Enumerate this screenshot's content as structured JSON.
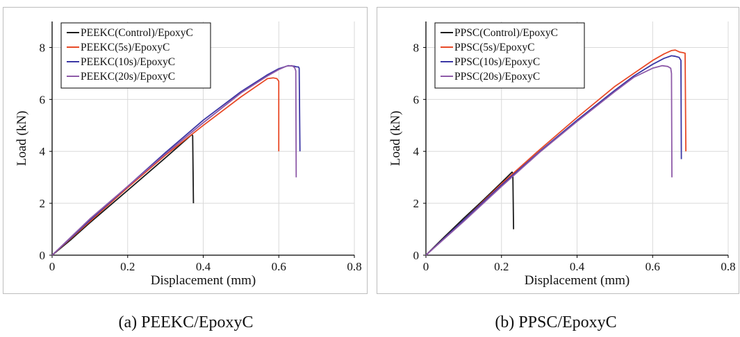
{
  "chart_data": [
    {
      "type": "line",
      "xlabel": "Displacement (mm)",
      "ylabel": "Load (kN)",
      "xlim": [
        0,
        0.8
      ],
      "ylim": [
        0,
        9
      ],
      "xticks": [
        "0",
        "0.2",
        "0.4",
        "0.6",
        "0.8"
      ],
      "yticks": [
        "0",
        "2",
        "4",
        "6",
        "8"
      ],
      "grid": true,
      "legend": "top-left",
      "caption": "(a) PEEKC/EpoxyC",
      "series": [
        {
          "name": "PEEKC(Control)/EpoxyC",
          "color": "#1a1a1a",
          "x": [
            0,
            0.05,
            0.1,
            0.2,
            0.3,
            0.37,
            0.372,
            0.374
          ],
          "y": [
            0,
            0.6,
            1.25,
            2.5,
            3.75,
            4.65,
            4.6,
            2.0
          ]
        },
        {
          "name": "PEEKC(5s)/EpoxyC",
          "color": "#e84a27",
          "x": [
            0,
            0.05,
            0.1,
            0.2,
            0.3,
            0.4,
            0.5,
            0.55,
            0.57,
            0.585,
            0.595,
            0.6,
            0.6
          ],
          "y": [
            0,
            0.65,
            1.3,
            2.6,
            3.85,
            5.0,
            6.1,
            6.6,
            6.8,
            6.83,
            6.8,
            6.7,
            4.0
          ]
        },
        {
          "name": "PEEKC(10s)/EpoxyC",
          "color": "#3b37a5",
          "x": [
            0,
            0.05,
            0.1,
            0.2,
            0.3,
            0.4,
            0.5,
            0.57,
            0.6,
            0.625,
            0.64,
            0.648,
            0.652,
            0.654,
            0.656
          ],
          "y": [
            0,
            0.67,
            1.35,
            2.65,
            3.95,
            5.2,
            6.3,
            6.95,
            7.18,
            7.3,
            7.28,
            7.25,
            7.25,
            7.2,
            4.0
          ]
        },
        {
          "name": "PEEKC(20s)/EpoxyC",
          "color": "#8e5aa8",
          "x": [
            0,
            0.05,
            0.1,
            0.2,
            0.3,
            0.4,
            0.5,
            0.57,
            0.6,
            0.62,
            0.635,
            0.642,
            0.645,
            0.646
          ],
          "y": [
            0,
            0.7,
            1.4,
            2.65,
            3.9,
            5.1,
            6.25,
            6.9,
            7.15,
            7.28,
            7.3,
            7.22,
            7.1,
            3.0
          ]
        }
      ]
    },
    {
      "type": "line",
      "xlabel": "Displacement (mm)",
      "ylabel": "Load (kN)",
      "xlim": [
        0,
        0.8
      ],
      "ylim": [
        0,
        9
      ],
      "xticks": [
        "0",
        "0.2",
        "0.4",
        "0.6",
        "0.8"
      ],
      "yticks": [
        "0",
        "2",
        "4",
        "6",
        "8"
      ],
      "grid": true,
      "legend": "top-left",
      "caption": "(b) PPSC/EpoxyC",
      "series": [
        {
          "name": "PPSC(Control)/EpoxyC",
          "color": "#1a1a1a",
          "x": [
            0,
            0.05,
            0.1,
            0.15,
            0.2,
            0.228,
            0.23,
            0.232
          ],
          "y": [
            0,
            0.72,
            1.42,
            2.1,
            2.8,
            3.2,
            3.15,
            1.0
          ]
        },
        {
          "name": "PPSC(5s)/EpoxyC",
          "color": "#e84a27",
          "x": [
            0,
            0.1,
            0.2,
            0.3,
            0.4,
            0.5,
            0.55,
            0.6,
            0.63,
            0.65,
            0.66,
            0.672,
            0.68,
            0.686,
            0.688
          ],
          "y": [
            0,
            1.35,
            2.75,
            4.05,
            5.3,
            6.5,
            7.0,
            7.5,
            7.75,
            7.88,
            7.9,
            7.82,
            7.8,
            7.78,
            4.0
          ]
        },
        {
          "name": "PPSC(10s)/EpoxyC",
          "color": "#3b37a5",
          "x": [
            0,
            0.1,
            0.2,
            0.3,
            0.4,
            0.5,
            0.55,
            0.6,
            0.63,
            0.65,
            0.66,
            0.67,
            0.675,
            0.676
          ],
          "y": [
            0,
            1.35,
            2.7,
            3.98,
            5.2,
            6.35,
            6.9,
            7.35,
            7.58,
            7.68,
            7.66,
            7.62,
            7.5,
            3.7
          ]
        },
        {
          "name": "PPSC(20s)/EpoxyC",
          "color": "#8e5aa8",
          "x": [
            0,
            0.1,
            0.2,
            0.3,
            0.4,
            0.5,
            0.55,
            0.6,
            0.625,
            0.64,
            0.648,
            0.65,
            0.651
          ],
          "y": [
            0,
            1.3,
            2.65,
            3.95,
            5.15,
            6.3,
            6.85,
            7.2,
            7.3,
            7.27,
            7.2,
            7.0,
            3.0
          ]
        }
      ]
    }
  ]
}
